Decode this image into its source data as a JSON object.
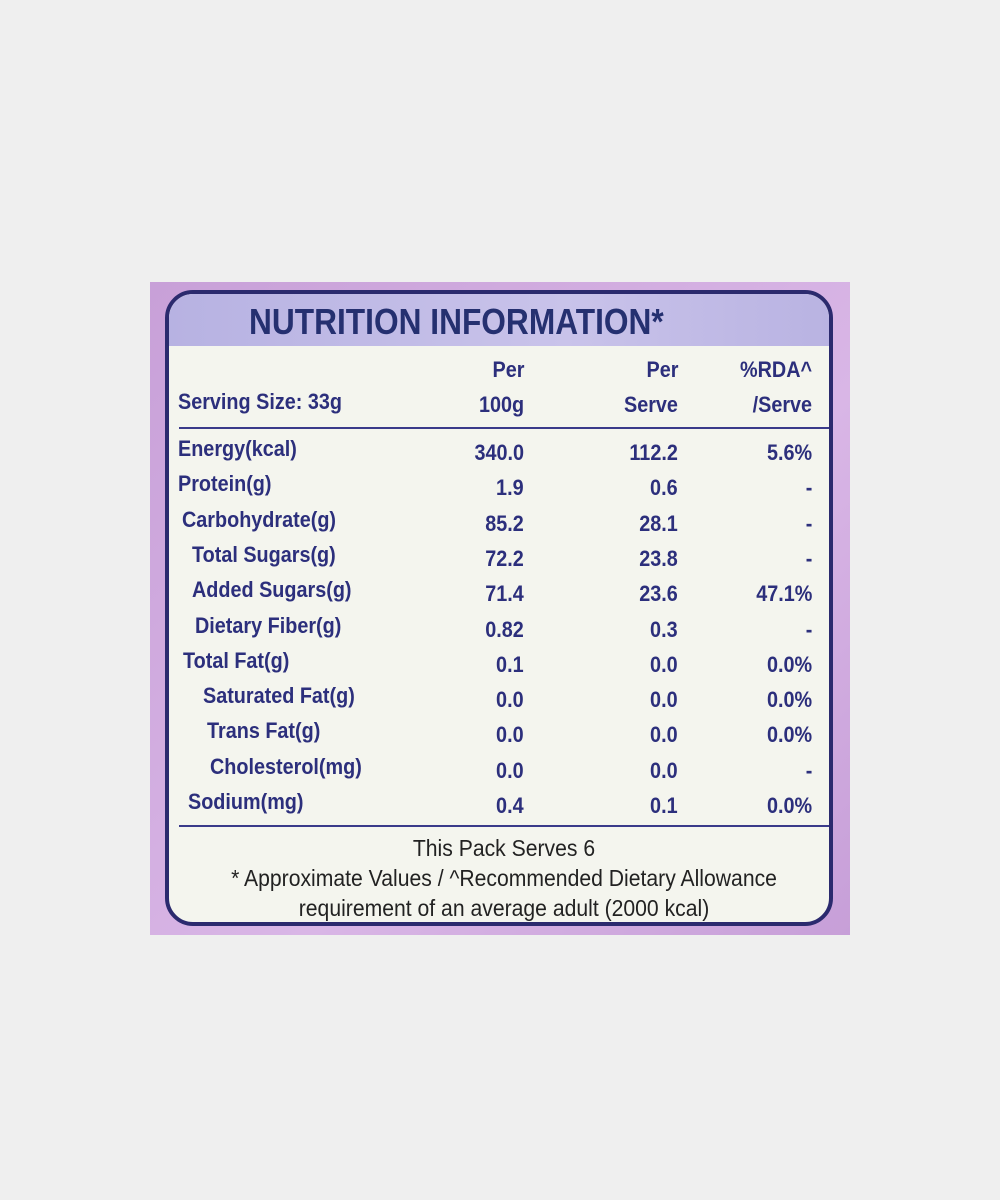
{
  "header": {
    "title": "NUTRITION INFORMATION*"
  },
  "table": {
    "serving_size": "Serving Size: 33g",
    "columns": [
      [
        "Per",
        "100g"
      ],
      [
        "Per",
        "Serve"
      ],
      [
        "%RDA^",
        "/Serve"
      ]
    ],
    "rows": [
      [
        "Energy(kcal)",
        "340.0",
        "112.2",
        "5.6%"
      ],
      [
        "Protein(g)",
        "1.9",
        "0.6",
        "-"
      ],
      [
        "Carbohydrate(g)",
        "85.2",
        "28.1",
        "-"
      ],
      [
        "Total Sugars(g)",
        "72.2",
        "23.8",
        "-"
      ],
      [
        "Added Sugars(g)",
        "71.4",
        "23.6",
        "47.1%"
      ],
      [
        "Dietary Fiber(g)",
        "0.82",
        "0.3",
        "-"
      ],
      [
        "Total Fat(g)",
        "0.1",
        "0.0",
        "0.0%"
      ],
      [
        "Saturated Fat(g)",
        "0.0",
        "0.0",
        "0.0%"
      ],
      [
        "Trans Fat(g)",
        "0.0",
        "0.0",
        "0.0%"
      ],
      [
        "Cholesterol(mg)",
        "0.0",
        "0.0",
        "-"
      ],
      [
        "Sodium(mg)",
        "0.4",
        "0.1",
        "0.0%"
      ]
    ]
  },
  "footer": {
    "serves": "This Pack Serves 6",
    "notes": [
      "* Approximate Values / ^Recommended Dietary Allowance",
      "requirement of an average adult (2000 kcal)"
    ]
  }
}
